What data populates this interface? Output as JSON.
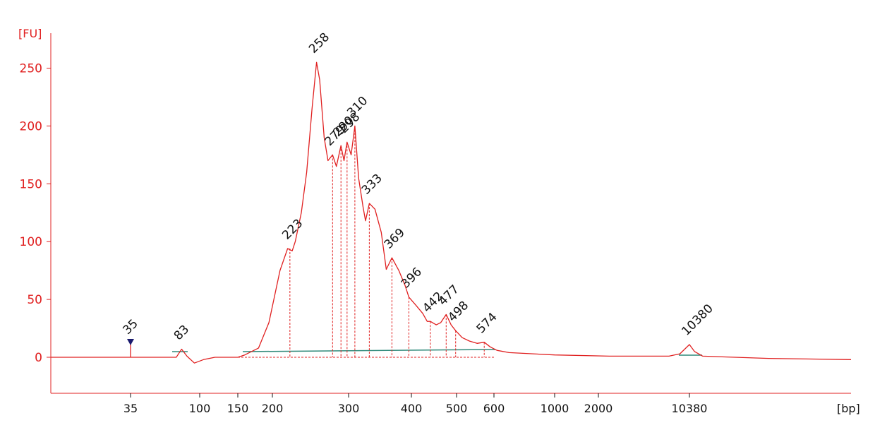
{
  "chart_data": {
    "type": "line",
    "title": "",
    "ylabel": "[FU]",
    "xlabel": "[bp]",
    "ylim": [
      -30,
      280
    ],
    "yticks": [
      0,
      50,
      100,
      150,
      200,
      250
    ],
    "xticks": [
      35,
      100,
      150,
      200,
      300,
      400,
      500,
      600,
      1000,
      2000,
      10380
    ],
    "xtick_labels": [
      "35",
      "100",
      "150",
      "200",
      "300",
      "400",
      "500",
      "600",
      "1000",
      "2000",
      "10380"
    ],
    "grid": false,
    "colors": {
      "trace": "#e02020",
      "axis": "#e02020",
      "baseline": "#2f8a7a",
      "lower_marker": "#2a9d2a",
      "upper_marker": "#9b30ff",
      "marker_triangle": "#1a1a6e",
      "labels": "#111111"
    },
    "series": [
      {
        "values": [
          [
            0,
            0
          ],
          [
            35,
            0
          ],
          [
            35,
            12
          ],
          [
            35,
            0
          ],
          [
            60,
            0
          ],
          [
            78,
            0
          ],
          [
            83,
            7
          ],
          [
            88,
            1
          ],
          [
            95,
            -5
          ],
          [
            105,
            -2
          ],
          [
            120,
            0
          ],
          [
            150,
            0
          ],
          [
            160,
            2
          ],
          [
            180,
            8
          ],
          [
            195,
            30
          ],
          [
            210,
            75
          ],
          [
            220,
            94
          ],
          [
            226,
            92
          ],
          [
            230,
            100
          ],
          [
            238,
            125
          ],
          [
            245,
            160
          ],
          [
            252,
            215
          ],
          [
            258,
            255
          ],
          [
            262,
            240
          ],
          [
            268,
            190
          ],
          [
            273,
            170
          ],
          [
            279,
            175
          ],
          [
            284,
            165
          ],
          [
            290,
            183
          ],
          [
            294,
            170
          ],
          [
            298,
            186
          ],
          [
            304,
            175
          ],
          [
            310,
            200
          ],
          [
            316,
            155
          ],
          [
            323,
            130
          ],
          [
            327,
            118
          ],
          [
            333,
            133
          ],
          [
            342,
            128
          ],
          [
            352,
            108
          ],
          [
            360,
            76
          ],
          [
            369,
            86
          ],
          [
            380,
            75
          ],
          [
            390,
            62
          ],
          [
            396,
            52
          ],
          [
            410,
            45
          ],
          [
            425,
            38
          ],
          [
            435,
            31
          ],
          [
            442,
            31
          ],
          [
            455,
            28
          ],
          [
            465,
            30
          ],
          [
            477,
            37
          ],
          [
            488,
            28
          ],
          [
            498,
            23
          ],
          [
            515,
            17
          ],
          [
            535,
            14
          ],
          [
            555,
            12
          ],
          [
            574,
            13
          ],
          [
            590,
            9
          ],
          [
            620,
            6
          ],
          [
            700,
            4
          ],
          [
            1000,
            2
          ],
          [
            3000,
            1
          ],
          [
            8500,
            1
          ],
          [
            9500,
            3
          ],
          [
            10380,
            11
          ],
          [
            11000,
            5
          ],
          [
            12000,
            1
          ],
          [
            20000,
            -1
          ],
          [
            30000,
            -2
          ]
        ]
      }
    ],
    "peaks": [
      {
        "label": "35",
        "x": 35,
        "y": 12
      },
      {
        "label": "83",
        "x": 83,
        "y": 7
      },
      {
        "label": "223",
        "x": 223,
        "y": 94
      },
      {
        "label": "258",
        "x": 258,
        "y": 255
      },
      {
        "label": "279",
        "x": 279,
        "y": 175
      },
      {
        "label": "290",
        "x": 290,
        "y": 183
      },
      {
        "label": "298",
        "x": 298,
        "y": 186
      },
      {
        "label": "310",
        "x": 310,
        "y": 200
      },
      {
        "label": "333",
        "x": 333,
        "y": 133
      },
      {
        "label": "369",
        "x": 369,
        "y": 86
      },
      {
        "label": "396",
        "x": 396,
        "y": 52
      },
      {
        "label": "442",
        "x": 442,
        "y": 31
      },
      {
        "label": "477",
        "x": 477,
        "y": 37
      },
      {
        "label": "498",
        "x": 498,
        "y": 23
      },
      {
        "label": "574",
        "x": 574,
        "y": 13
      },
      {
        "label": "10380",
        "x": 10380,
        "y": 11
      }
    ]
  }
}
